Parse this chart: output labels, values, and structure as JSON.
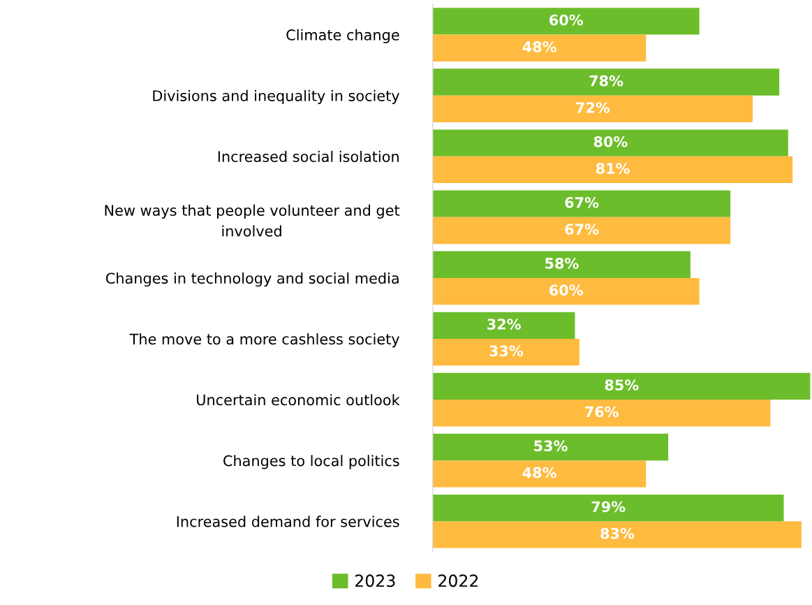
{
  "chart_data": {
    "type": "bar",
    "orientation": "horizontal",
    "categories": [
      "Climate change",
      "Divisions and inequality in society",
      "Increased social isolation",
      "New ways that people volunteer and get\ninvolved",
      "Changes in technology and social media",
      "The move to a more cashless society",
      "Uncertain economic outlook",
      "Changes to local politics",
      "Increased demand for services"
    ],
    "series": [
      {
        "name": "2023",
        "color": "#6cbd2b",
        "values": [
          60,
          78,
          80,
          67,
          58,
          32,
          85,
          53,
          79
        ],
        "value_labels": [
          "60%",
          "78%",
          "80%",
          "67%",
          "58%",
          "32%",
          "85%",
          "53%",
          "79%"
        ]
      },
      {
        "name": "2022",
        "color": "#ffbb40",
        "values": [
          48,
          72,
          81,
          67,
          60,
          33,
          76,
          48,
          83
        ],
        "value_labels": [
          "48%",
          "72%",
          "81%",
          "67%",
          "60%",
          "33%",
          "76%",
          "48%",
          "83%"
        ]
      }
    ],
    "legend": "bottom",
    "grid": false,
    "tick_labels": "y"
  }
}
